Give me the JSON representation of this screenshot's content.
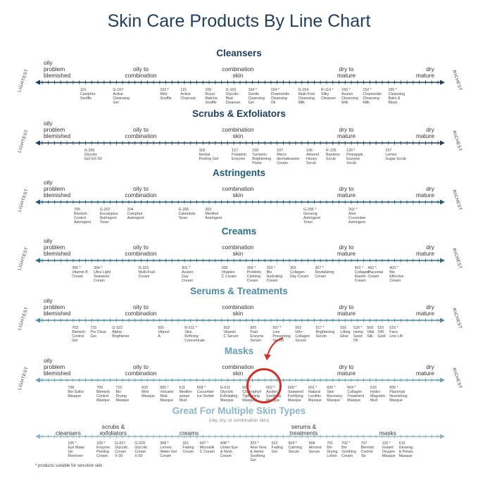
{
  "title": "Skin Care Products By Line Chart",
  "side_left": "LIGHTEST",
  "side_right": "RICHEST",
  "footnote": "* products suitable for sensitive skin",
  "sections": [
    {
      "title": "Cleansers",
      "color": "#1f3d5e",
      "skin_labels": [
        {
          "text": "oily\nproblem\nblemished",
          "pos": "left"
        },
        {
          "text": "oily to\ncombination",
          "pos": "c1"
        },
        {
          "text": "combination\nskin",
          "pos": "c2"
        },
        {
          "text": "dry to\nmature",
          "pos": "c3"
        },
        {
          "text": "dry\nmature",
          "pos": "right"
        }
      ],
      "products": [
        {
          "text": "101\nCamphor\nSouffle",
          "x": 0.12
        },
        {
          "text": "G-107\nActive\nCleansing\nGel",
          "x": 0.2
        },
        {
          "text": "102 *\nMint\nSouffle",
          "x": 0.315
        },
        {
          "text": "121\nActive\nCharcoal",
          "x": 0.365
        },
        {
          "text": "100\nRoyal\nMatcha\nSouffle",
          "x": 0.425
        },
        {
          "text": "G-103\nGlycolic\nMud\nCleanser",
          "x": 0.475
        },
        {
          "text": "104 *\nGentle\nCleansing\nGel",
          "x": 0.53
        },
        {
          "text": "154 *\nChamomile\nCleansing\nOil",
          "x": 0.585
        },
        {
          "text": "G-154\nMulti-Fruit\nCleansing\nMilk",
          "x": 0.652
        },
        {
          "text": "R-114 *\nSilky\nCleanser",
          "x": 0.708
        },
        {
          "text": "150 *\nAzulen\nCleansing\nMilk",
          "x": 0.758
        },
        {
          "text": "152 *\nChamomile\nCleansing\nMilk",
          "x": 0.81
        },
        {
          "text": "155 *\nCleansing\nBalm &\nMask",
          "x": 0.872
        }
      ]
    },
    {
      "title": "Scrubs & Exfoliators",
      "color": "#1f3d5e",
      "skin_labels": [
        {
          "text": "oily\nproblem\nblemished",
          "pos": "left"
        },
        {
          "text": "oily to\ncombination",
          "pos": "c1"
        },
        {
          "text": "combination\nskin",
          "pos": "c2"
        },
        {
          "text": "dry to\nmature",
          "pos": "c3"
        },
        {
          "text": "dry\nmature",
          "pos": "right"
        }
      ],
      "products": [
        {
          "text": "G-330\nGlycolic\nGel GX-50",
          "x": 0.13
        },
        {
          "text": "118\nHerbal\nPeeling Gel",
          "x": 0.41
        },
        {
          "text": "127\nPumpkin\nEnzyme",
          "x": 0.49
        },
        {
          "text": "159\nTurmeric\nBrightening\nPaste",
          "x": 0.54
        },
        {
          "text": "107\nMicro-\ndermabrasion\nCream",
          "x": 0.6
        },
        {
          "text": "106\nAlmond\nHoney\nScrub",
          "x": 0.672
        },
        {
          "text": "R-125\nBamboo\nScrub",
          "x": 0.72
        },
        {
          "text": "120 *\nPineapple\nEnzyme\nScrub",
          "x": 0.77
        },
        {
          "text": "157\nLemon\nSugar Scrub",
          "x": 0.865
        }
      ]
    },
    {
      "title": "Astringents",
      "color": "#1f5a73",
      "skin_labels": [
        {
          "text": "oily\nproblem\nblemished",
          "pos": "left"
        },
        {
          "text": "oily to\ncombination",
          "pos": "c1"
        },
        {
          "text": "combination\nskin",
          "pos": "c2"
        },
        {
          "text": "dry to\nmature",
          "pos": "c3"
        },
        {
          "text": "dry\nmature",
          "pos": "right"
        }
      ],
      "products": [
        {
          "text": "705\nBlemish\nControl\nAstringent",
          "x": 0.105
        },
        {
          "text": "G-207\nEucalyptus\nAstringent\nToner",
          "x": 0.168
        },
        {
          "text": "204\nCamphor\nAstringent",
          "x": 0.235
        },
        {
          "text": "G-206\nCalendula\nToner",
          "x": 0.36
        },
        {
          "text": "203\nMenthol\nAstringent",
          "x": 0.425
        },
        {
          "text": "G-205 *\nGinseng\nAstringent\nToner",
          "x": 0.665
        },
        {
          "text": "202 *\nAloe\nCucumber\nAstringent",
          "x": 0.775
        }
      ]
    },
    {
      "title": "Creams",
      "color": "#2b6f86",
      "skin_labels": [
        {
          "text": "oily\nproblem\nblemished",
          "pos": "left"
        },
        {
          "text": "oily to\ncombination",
          "pos": "c1"
        },
        {
          "text": "combination\nskin",
          "pos": "c2"
        },
        {
          "text": "dry to\nmature",
          "pos": "c3"
        },
        {
          "text": "dry\nmature",
          "pos": "right"
        }
      ],
      "products": [
        {
          "text": "300 *\nVitamin B\nCream",
          "x": 0.1
        },
        {
          "text": "304 *\nUltra Light\nSeaweed\nCream",
          "x": 0.153
        },
        {
          "text": "G-323\nMulti-Fruit\nCream",
          "x": 0.262
        },
        {
          "text": "301 *\nAzulen\nDay\nCream",
          "x": 0.368
        },
        {
          "text": "305\nVitaplex\nC Cream",
          "x": 0.465
        },
        {
          "text": "309 *\nProbiotic\nCalming\nCream",
          "x": 0.527
        },
        {
          "text": "303 *\nBio\nHydrating\nCream",
          "x": 0.575
        },
        {
          "text": "302\nCollagen\nDay Cream",
          "x": 0.632
        },
        {
          "text": "307 *\nRevitalizing\nCream",
          "x": 0.693
        },
        {
          "text": "401 *\nCollagen\nElastin\nCream",
          "x": 0.79
        },
        {
          "text": "402 *\nPlacental\nCream",
          "x": 0.822
        },
        {
          "text": "403 *\nBio\nEffective\nCream",
          "x": 0.875
        }
      ]
    },
    {
      "title": "Serums & Treatments",
      "color": "#4e8ba3",
      "skin_labels": [
        {
          "text": "oily\nproblem\nblemished",
          "pos": "left"
        },
        {
          "text": "oily to\ncombination",
          "pos": "c1"
        },
        {
          "text": "combination\nskin",
          "pos": "c2"
        },
        {
          "text": "dry to\nmature",
          "pos": "c3"
        },
        {
          "text": "dry\nmature",
          "pos": "right"
        }
      ],
      "products": [
        {
          "text": "703\nBlemish\nControl\nGel",
          "x": 0.1
        },
        {
          "text": "715\nPro Clear\nGel",
          "x": 0.145
        },
        {
          "text": "G-322\nAlpha\nBrightener",
          "x": 0.198
        },
        {
          "text": "501\nVitanol\nA",
          "x": 0.31
        },
        {
          "text": "R-511 *\nSkin\nRefining\nConcentrate",
          "x": 0.375
        },
        {
          "text": "503\nVitamin\nC Serum",
          "x": 0.47
        },
        {
          "text": "505\nFruit\nEnzyme\nSerum",
          "x": 0.535
        },
        {
          "text": "507 *\nLine\nPreventing\nSerum",
          "x": 0.59
        },
        {
          "text": "502\nHA+\nCollagen\nSerum",
          "x": 0.645
        },
        {
          "text": "517 *\nBrightening\nSerum",
          "x": 0.695
        },
        {
          "text": "555\nLifting\nElixir",
          "x": 0.755
        },
        {
          "text": "529 *\nHemp\nSeed\nOil",
          "x": 0.787
        },
        {
          "text": "509\nVital\nSilk",
          "x": 0.82
        },
        {
          "text": "510\n24K\nGold",
          "x": 0.846
        },
        {
          "text": "515 *\nFace\nLine Lift",
          "x": 0.875
        }
      ]
    },
    {
      "title": "Masks",
      "color": "#6a9fb4",
      "skin_labels": [
        {
          "text": "oily\nproblem\nblemished",
          "pos": "left"
        },
        {
          "text": "oily to\ncombination",
          "pos": "c1"
        },
        {
          "text": "combination\nskin",
          "pos": "c2"
        },
        {
          "text": "dry to\nmature",
          "pos": "c3"
        },
        {
          "text": "dry\nmature",
          "pos": "right"
        }
      ],
      "products": [
        {
          "text": "708\nBio Sulfur\nMasque",
          "x": 0.09
        },
        {
          "text": "709\nBlemish\nControl\nMasque",
          "x": 0.16
        },
        {
          "text": "710\nBio\nDrying\nMasque",
          "x": 0.207
        },
        {
          "text": "603\nMint\nMasque",
          "x": 0.27
        },
        {
          "text": "605 *\nVolcanic\nMud\nMasque",
          "x": 0.315
        },
        {
          "text": "611\nMediter-\nanean\nMud",
          "x": 0.362
        },
        {
          "text": "608 *\nCucumber\nIce Sorbet",
          "x": 0.405
        },
        {
          "text": "G-611\nGlycolic\nExfoliating\nMasque",
          "x": 0.462
        },
        {
          "text": "607 *\nChlorophyll\nTightening\nMasque",
          "x": 0.516
        },
        {
          "text": "602 *\nAzulen\nSoothing\nMasque",
          "x": 0.574
        },
        {
          "text": "609 *\nSeaweed\nFortifying\nMasque",
          "x": 0.627
        },
        {
          "text": "601 *\nNatural\nLecithin\nMasque",
          "x": 0.677
        },
        {
          "text": "600 *\nSkin\nRecovery\nMasque",
          "x": 0.722
        },
        {
          "text": "604 *\nCollagen\nTreatment\nMasque",
          "x": 0.772
        },
        {
          "text": "610\nHydro\nMagnetic\nMud",
          "x": 0.828
        },
        {
          "text": "606 *\nPlacental\nNourishing\nMasque",
          "x": 0.875
        }
      ]
    }
  ],
  "multi": {
    "title": "Great For Multiple Skin Types",
    "subtitle": "(oily, dry, or combination skin)",
    "color": "#8fb5c6",
    "categories": [
      {
        "text": "cleansers",
        "x": 0.115
      },
      {
        "text": "scrubs &\nexfoliators",
        "x": 0.225
      },
      {
        "text": "creams",
        "x": 0.41
      },
      {
        "text": "serums &\ntreatments",
        "x": 0.69
      },
      {
        "text": "masks",
        "x": 0.895
      }
    ],
    "products": [
      {
        "text": "105 *\nEye Make\nUp\nRemover",
        "x": 0.09
      },
      {
        "text": "109 *\nEnzyme\nPeeling\nCream",
        "x": 0.16
      },
      {
        "text": "G-327\nGlycolic\nCream\nX-30",
        "x": 0.205
      },
      {
        "text": "G-329\nGlycolic\nCream\nX-50",
        "x": 0.253
      },
      {
        "text": "308 *\nLemon\nWater Gel\nCream",
        "x": 0.315
      },
      {
        "text": "321\nFading\nCream",
        "x": 0.37
      },
      {
        "text": "407 *\nMicrosilk\nC Cream",
        "x": 0.412
      },
      {
        "text": "408 *\nUnder Eye\n& Neck\nCream",
        "x": 0.462
      },
      {
        "text": "323 *\nAloe Vera\n& Herbs\nSoothing\nGel",
        "x": 0.535
      },
      {
        "text": "522\nFading\nGel",
        "x": 0.587
      },
      {
        "text": "504 *\nCalming\nSerum",
        "x": 0.628
      },
      {
        "text": "508\nAlmond\nSerum",
        "x": 0.678
      },
      {
        "text": "701\nBio\nDrying\nLotion",
        "x": 0.722
      },
      {
        "text": "702 *\nBio\nSoothing\nCream",
        "x": 0.758
      },
      {
        "text": "707\nBlemish\nControl\nTar",
        "x": 0.805
      },
      {
        "text": "115 *\nInstant\nOxygen\nMasque",
        "x": 0.857
      },
      {
        "text": "610\nGinseng\n& Petals\nMasque",
        "x": 0.898
      }
    ]
  }
}
